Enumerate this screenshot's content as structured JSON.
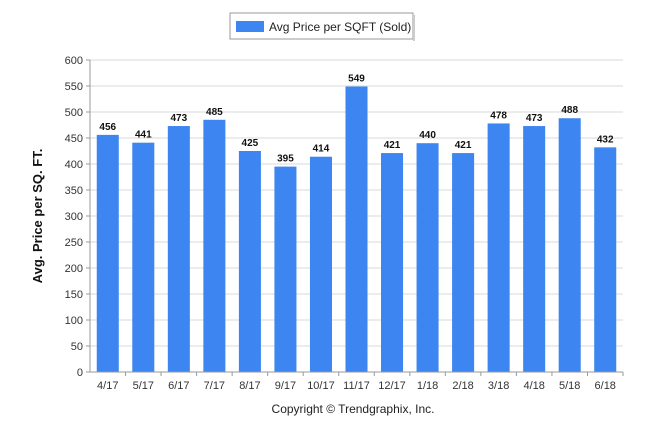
{
  "chart_data": {
    "type": "bar",
    "title": "",
    "xlabel": "",
    "ylabel": "Avg. Price per SQ. FT.",
    "categories": [
      "4/17",
      "5/17",
      "6/17",
      "7/17",
      "8/17",
      "9/17",
      "10/17",
      "11/17",
      "12/17",
      "1/18",
      "2/18",
      "3/18",
      "4/18",
      "5/18",
      "6/18"
    ],
    "series": [
      {
        "name": "Avg Price per SQFT (Sold)",
        "values": [
          456,
          441,
          473,
          485,
          425,
          395,
          414,
          549,
          421,
          440,
          421,
          478,
          473,
          488,
          432
        ],
        "color": "#3d85f0"
      }
    ],
    "ylim": [
      0,
      600
    ],
    "yticks": [
      0,
      50,
      100,
      150,
      200,
      250,
      300,
      350,
      400,
      450,
      500,
      550,
      600
    ],
    "grid": true,
    "legend": "top-center",
    "data_labels": true
  },
  "footer": {
    "copyright": "Copyright © Trendgraphix, Inc."
  }
}
